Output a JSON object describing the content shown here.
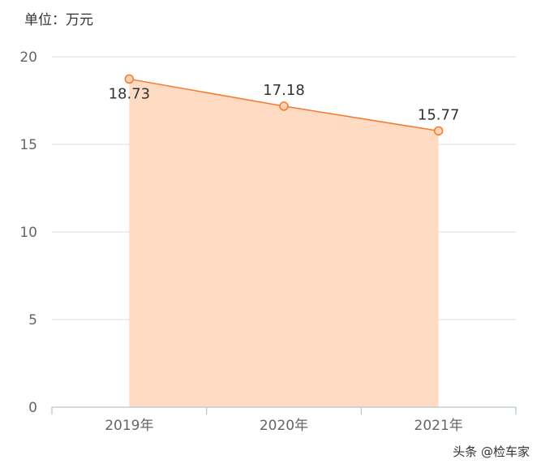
{
  "unit_label": "单位：万元",
  "watermark": "头条 @检车家",
  "colors": {
    "line": "#f47a2c",
    "area": "#ffdbc3",
    "marker_fill": "#ffd2b6",
    "grid": "#dddddd",
    "axis": "#b8c4d0",
    "tick_text": "#666666",
    "label_text": "#333333"
  },
  "chart_data": {
    "type": "area",
    "categories": [
      "2019年",
      "2020年",
      "2021年"
    ],
    "values": [
      18.73,
      17.18,
      15.77
    ],
    "data_labels": [
      "18.73",
      "17.18",
      "15.77"
    ],
    "ylim": [
      0,
      20
    ],
    "y_ticks": [
      "0",
      "5",
      "10",
      "15",
      "20"
    ],
    "grid": true,
    "legend": "none"
  }
}
